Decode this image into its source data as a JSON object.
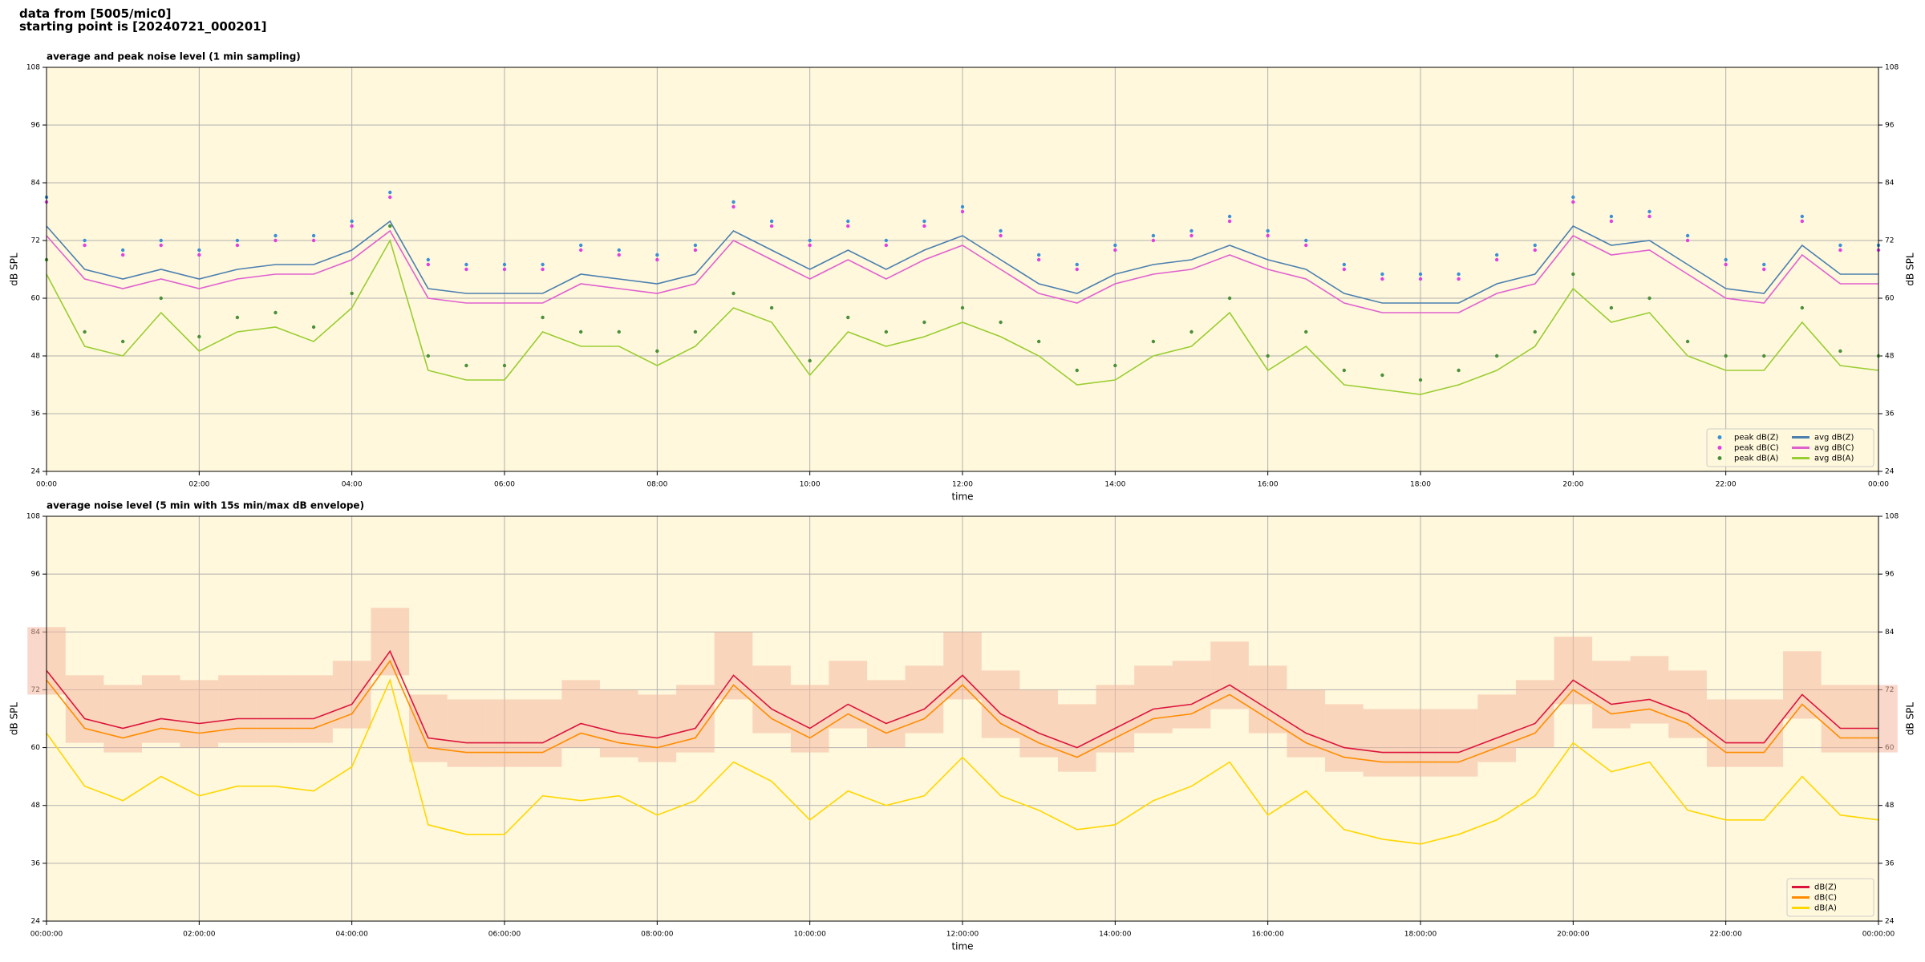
{
  "header": {
    "lines": [
      "data from [5005/mic0]",
      "starting point is [20240721_000201]"
    ]
  },
  "chart_data": [
    {
      "type": "line",
      "title": "average and peak noise level (1 min sampling)",
      "xlabel": "time",
      "ylabel": "dB SPL",
      "x": [
        0,
        0.5,
        1,
        1.5,
        2,
        2.5,
        3,
        3.5,
        4,
        4.5,
        5,
        5.5,
        6,
        6.5,
        7,
        7.5,
        8,
        8.5,
        9,
        9.5,
        10,
        10.5,
        11,
        11.5,
        12,
        12.5,
        13,
        13.5,
        14,
        14.5,
        15,
        15.5,
        16,
        16.5,
        17,
        17.5,
        18,
        18.5,
        19,
        19.5,
        20,
        20.5,
        21,
        21.5,
        22,
        22.5,
        23,
        23.5,
        24
      ],
      "xlim": [
        0,
        24
      ],
      "ylim": [
        24,
        108
      ],
      "yticks": [
        24,
        36,
        48,
        60,
        72,
        84,
        96,
        108
      ],
      "xticks": [
        {
          "value": 0,
          "label": "00:00"
        },
        {
          "value": 2,
          "label": "02:00"
        },
        {
          "value": 4,
          "label": "04:00"
        },
        {
          "value": 6,
          "label": "06:00"
        },
        {
          "value": 8,
          "label": "08:00"
        },
        {
          "value": 10,
          "label": "10:00"
        },
        {
          "value": 12,
          "label": "12:00"
        },
        {
          "value": 14,
          "label": "14:00"
        },
        {
          "value": 16,
          "label": "16:00"
        },
        {
          "value": 18,
          "label": "18:00"
        },
        {
          "value": 20,
          "label": "20:00"
        },
        {
          "value": 22,
          "label": "22:00"
        },
        {
          "value": 24,
          "label": "00:00"
        }
      ],
      "grid": true,
      "legend": "lower right",
      "legend_ncol": 2,
      "background": "#fff8dc",
      "series": [
        {
          "name": "peak dB(Z)",
          "kind": "scatter",
          "color": "#3b8fd6",
          "values": [
            81,
            72,
            70,
            72,
            70,
            72,
            73,
            73,
            76,
            82,
            68,
            67,
            67,
            67,
            71,
            70,
            69,
            71,
            80,
            76,
            72,
            76,
            72,
            76,
            79,
            74,
            69,
            67,
            71,
            73,
            74,
            77,
            74,
            72,
            67,
            65,
            65,
            65,
            69,
            71,
            81,
            77,
            78,
            73,
            68,
            67,
            77,
            71,
            71
          ]
        },
        {
          "name": "peak dB(C)",
          "kind": "scatter",
          "color": "#e040e0",
          "values": [
            80,
            71,
            69,
            71,
            69,
            71,
            72,
            72,
            75,
            81,
            67,
            66,
            66,
            66,
            70,
            69,
            68,
            70,
            79,
            75,
            71,
            75,
            71,
            75,
            78,
            73,
            68,
            66,
            70,
            72,
            73,
            76,
            73,
            71,
            66,
            64,
            64,
            64,
            68,
            70,
            80,
            76,
            77,
            72,
            67,
            66,
            76,
            70,
            70
          ]
        },
        {
          "name": "peak dB(A)",
          "kind": "scatter",
          "color": "#4a8f3a",
          "values": [
            68,
            53,
            51,
            60,
            52,
            56,
            57,
            54,
            61,
            75,
            48,
            46,
            46,
            56,
            53,
            53,
            49,
            53,
            61,
            58,
            47,
            56,
            53,
            55,
            58,
            55,
            51,
            45,
            46,
            51,
            53,
            60,
            48,
            53,
            45,
            44,
            43,
            45,
            48,
            53,
            65,
            58,
            60,
            51,
            48,
            48,
            58,
            49,
            48
          ]
        },
        {
          "name": "avg dB(Z)",
          "kind": "line",
          "color": "#4a7fb0",
          "values": [
            75,
            66,
            64,
            66,
            64,
            66,
            67,
            67,
            70,
            76,
            62,
            61,
            61,
            61,
            65,
            64,
            63,
            65,
            74,
            70,
            66,
            70,
            66,
            70,
            73,
            68,
            63,
            61,
            65,
            67,
            68,
            71,
            68,
            66,
            61,
            59,
            59,
            59,
            63,
            65,
            75,
            71,
            72,
            67,
            62,
            61,
            71,
            65,
            65
          ]
        },
        {
          "name": "avg dB(C)",
          "kind": "line",
          "color": "#e060d0",
          "values": [
            73,
            64,
            62,
            64,
            62,
            64,
            65,
            65,
            68,
            74,
            60,
            59,
            59,
            59,
            63,
            62,
            61,
            63,
            72,
            68,
            64,
            68,
            64,
            68,
            71,
            66,
            61,
            59,
            63,
            65,
            66,
            69,
            66,
            64,
            59,
            57,
            57,
            57,
            61,
            63,
            73,
            69,
            70,
            65,
            60,
            59,
            69,
            63,
            63
          ]
        },
        {
          "name": "avg dB(A)",
          "kind": "line",
          "color": "#9acd32",
          "values": [
            65,
            50,
            48,
            57,
            49,
            53,
            54,
            51,
            58,
            72,
            45,
            43,
            43,
            53,
            50,
            50,
            46,
            50,
            58,
            55,
            44,
            53,
            50,
            52,
            55,
            52,
            48,
            42,
            43,
            48,
            50,
            57,
            45,
            50,
            42,
            41,
            40,
            42,
            45,
            50,
            62,
            55,
            57,
            48,
            45,
            45,
            55,
            46,
            45
          ]
        }
      ]
    },
    {
      "type": "line",
      "title": "average noise level (5 min with 15s min/max dB envelope)",
      "xlabel": "time",
      "ylabel": "dB SPL",
      "x": [
        0,
        0.5,
        1,
        1.5,
        2,
        2.5,
        3,
        3.5,
        4,
        4.5,
        5,
        5.5,
        6,
        6.5,
        7,
        7.5,
        8,
        8.5,
        9,
        9.5,
        10,
        10.5,
        11,
        11.5,
        12,
        12.5,
        13,
        13.5,
        14,
        14.5,
        15,
        15.5,
        16,
        16.5,
        17,
        17.5,
        18,
        18.5,
        19,
        19.5,
        20,
        20.5,
        21,
        21.5,
        22,
        22.5,
        23,
        23.5,
        24
      ],
      "xlim": [
        0,
        24
      ],
      "ylim": [
        24,
        108
      ],
      "yticks": [
        24,
        36,
        48,
        60,
        72,
        84,
        96,
        108
      ],
      "xticks": [
        {
          "value": 0,
          "label": "00:00:00"
        },
        {
          "value": 2,
          "label": "02:00:00"
        },
        {
          "value": 4,
          "label": "04:00:00"
        },
        {
          "value": 6,
          "label": "06:00:00"
        },
        {
          "value": 8,
          "label": "08:00:00"
        },
        {
          "value": 10,
          "label": "10:00:00"
        },
        {
          "value": 12,
          "label": "12:00:00"
        },
        {
          "value": 14,
          "label": "14:00:00"
        },
        {
          "value": 16,
          "label": "16:00:00"
        },
        {
          "value": 18,
          "label": "18:00:00"
        },
        {
          "value": 20,
          "label": "20:00:00"
        },
        {
          "value": 22,
          "label": "22:00:00"
        },
        {
          "value": 24,
          "label": "00:00:00"
        }
      ],
      "grid": true,
      "legend": "lower right",
      "legend_ncol": 1,
      "background": "#fff8dc",
      "envelope": {
        "color": "#f4b8a0",
        "min": [
          71,
          61,
          59,
          61,
          60,
          61,
          61,
          61,
          64,
          75,
          57,
          56,
          56,
          56,
          60,
          58,
          57,
          59,
          70,
          63,
          59,
          64,
          60,
          63,
          70,
          62,
          58,
          55,
          59,
          63,
          64,
          68,
          63,
          58,
          55,
          54,
          54,
          54,
          57,
          60,
          69,
          64,
          65,
          62,
          56,
          56,
          66,
          59,
          59
        ],
        "max": [
          85,
          75,
          73,
          75,
          74,
          75,
          75,
          75,
          78,
          89,
          71,
          70,
          70,
          70,
          74,
          72,
          71,
          73,
          84,
          77,
          73,
          78,
          74,
          77,
          84,
          76,
          72,
          69,
          73,
          77,
          78,
          82,
          77,
          72,
          69,
          68,
          68,
          68,
          71,
          74,
          83,
          78,
          79,
          76,
          70,
          70,
          80,
          73,
          73
        ]
      },
      "series": [
        {
          "name": "dB(Z)",
          "kind": "line",
          "color": "#dc143c",
          "values": [
            76,
            66,
            64,
            66,
            65,
            66,
            66,
            66,
            69,
            80,
            62,
            61,
            61,
            61,
            65,
            63,
            62,
            64,
            75,
            68,
            64,
            69,
            65,
            68,
            75,
            67,
            63,
            60,
            64,
            68,
            69,
            73,
            68,
            63,
            60,
            59,
            59,
            59,
            62,
            65,
            74,
            69,
            70,
            67,
            61,
            61,
            71,
            64,
            64
          ]
        },
        {
          "name": "dB(C)",
          "kind": "line",
          "color": "#ff8c00",
          "values": [
            74,
            64,
            62,
            64,
            63,
            64,
            64,
            64,
            67,
            78,
            60,
            59,
            59,
            59,
            63,
            61,
            60,
            62,
            73,
            66,
            62,
            67,
            63,
            66,
            73,
            65,
            61,
            58,
            62,
            66,
            67,
            71,
            66,
            61,
            58,
            57,
            57,
            57,
            60,
            63,
            72,
            67,
            68,
            65,
            59,
            59,
            69,
            62,
            62
          ]
        },
        {
          "name": "dB(A)",
          "kind": "line",
          "color": "#ffd700",
          "values": [
            63,
            52,
            49,
            54,
            50,
            52,
            52,
            51,
            56,
            74,
            44,
            42,
            42,
            50,
            49,
            50,
            46,
            49,
            57,
            53,
            45,
            51,
            48,
            50,
            58,
            50,
            47,
            43,
            44,
            49,
            52,
            57,
            46,
            51,
            43,
            41,
            40,
            42,
            45,
            50,
            61,
            55,
            57,
            47,
            45,
            45,
            54,
            46,
            45
          ]
        }
      ]
    }
  ]
}
